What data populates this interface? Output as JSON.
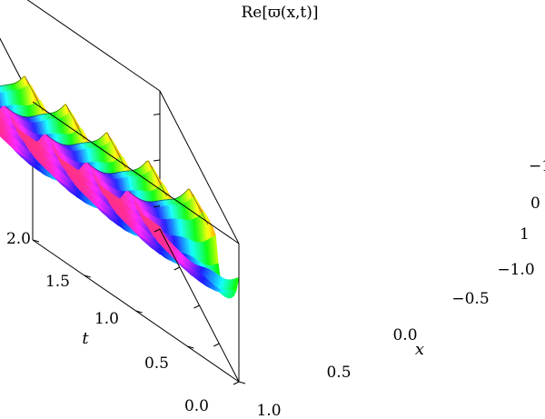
{
  "chart_data": {
    "type": "surface3d",
    "title": "Re[ϖ(x,t)]",
    "xlabel": "x",
    "ylabel": "t",
    "zlabel": "",
    "x_range": [
      -1.0,
      1.0
    ],
    "t_range": [
      0.0,
      2.0
    ],
    "z_range": [
      -1.5,
      1.5
    ],
    "x_ticks": [
      "1.0",
      "0.5",
      "0.0",
      "−0.5",
      "−1.0"
    ],
    "t_ticks": [
      "0.0",
      "0.5",
      "1.0",
      "1.5",
      "2.0"
    ],
    "z_ticks": [
      "−1",
      "0",
      "1"
    ],
    "colormap": "hue (rainbow)",
    "box": true,
    "grid": false,
    "ridges": [
      {
        "t": 1.9,
        "peak": 1.2
      },
      {
        "t": 1.5,
        "peak": 1.3
      },
      {
        "t": 1.1,
        "peak": 1.3
      },
      {
        "t": 0.7,
        "peak": 1.3
      },
      {
        "t": 0.3,
        "peak": 1.3
      }
    ],
    "description": "Real part of a travelling periodic wave: sharp crests along x that decay toward x = −1, repeating in t with period ≈ 0.4."
  }
}
